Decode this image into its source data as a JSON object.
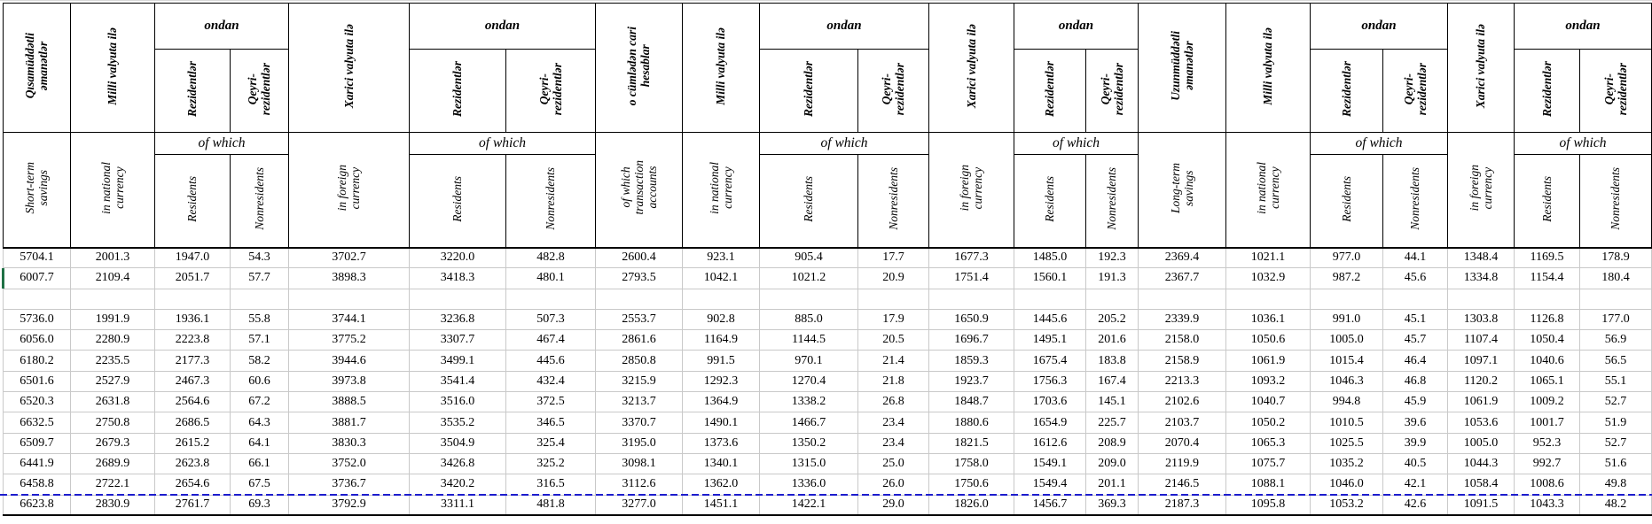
{
  "table": {
    "group_label_az": "ondan",
    "group_label_en": "of which",
    "columns": [
      {
        "az": "Qısamüddətli\nəmanətlər",
        "en": "Short-term\nsavings",
        "grouped": false
      },
      {
        "az": "Milli valyuta ilə",
        "en": "in national\ncurrency",
        "grouped": false
      },
      {
        "az": "Rezidentlər",
        "en": "Residents",
        "grouped": true
      },
      {
        "az": "Qeyri-\nrezidentlər",
        "en": "Nonresidents",
        "grouped": true
      },
      {
        "az": "Xarici valyuta ilə",
        "en": "in foreign\ncurrency",
        "grouped": false
      },
      {
        "az": "Rezidentlər",
        "en": "Residents",
        "grouped": true
      },
      {
        "az": "Qeyri-\nrezidentlər",
        "en": "Nonresidents",
        "grouped": true
      },
      {
        "az": "o cümlədən cari\nhesablar",
        "en": "of which\ntransaction\naccounts",
        "grouped": false
      },
      {
        "az": "Milli valyuta ilə",
        "en": "in national\ncurrency",
        "grouped": false
      },
      {
        "az": "Rezidentlər",
        "en": "Residents",
        "grouped": true
      },
      {
        "az": "Qeyri-\nrezidentlər",
        "en": "Nonresidents",
        "grouped": true
      },
      {
        "az": "Xarici valyuta ilə",
        "en": "in foreign\ncurrency",
        "grouped": false
      },
      {
        "az": "Rezidentlər",
        "en": "Residents",
        "grouped": true
      },
      {
        "az": "Qeyri-\nrezidentlər",
        "en": "Nonresidents",
        "grouped": true
      },
      {
        "az": "Uzunmüddətli\nəmanətlər",
        "en": "Long-term\nsavings",
        "grouped": false
      },
      {
        "az": "Milli valyuta ilə",
        "en": "in national\ncurrency",
        "grouped": false
      },
      {
        "az": "Rezidentlər",
        "en": "Residents",
        "grouped": true
      },
      {
        "az": "Qeyri-\nrezidentlər",
        "en": "Nonresidents",
        "grouped": true
      },
      {
        "az": "Xarici valyuta ilə",
        "en": "in foreign\ncurrency",
        "grouped": false
      },
      {
        "az": "Rezidentlər",
        "en": "Residents",
        "grouped": true
      },
      {
        "az": "Qeyri-\nrezidentlər",
        "en": "Nonresidents",
        "grouped": true
      }
    ],
    "rows": [
      [
        "5704.1",
        "2001.3",
        "1947.0",
        "54.3",
        "3702.7",
        "3220.0",
        "482.8",
        "2600.4",
        "923.1",
        "905.4",
        "17.7",
        "1677.3",
        "1485.0",
        "192.3",
        "2369.4",
        "1021.1",
        "977.0",
        "44.1",
        "1348.4",
        "1169.5",
        "178.9"
      ],
      [
        "6007.7",
        "2109.4",
        "2051.7",
        "57.7",
        "3898.3",
        "3418.3",
        "480.1",
        "2793.5",
        "1042.1",
        "1021.2",
        "20.9",
        "1751.4",
        "1560.1",
        "191.3",
        "2367.7",
        "1032.9",
        "987.2",
        "45.6",
        "1334.8",
        "1154.4",
        "180.4"
      ],
      null,
      [
        "5736.0",
        "1991.9",
        "1936.1",
        "55.8",
        "3744.1",
        "3236.8",
        "507.3",
        "2553.7",
        "902.8",
        "885.0",
        "17.9",
        "1650.9",
        "1445.6",
        "205.2",
        "2339.9",
        "1036.1",
        "991.0",
        "45.1",
        "1303.8",
        "1126.8",
        "177.0"
      ],
      [
        "6056.0",
        "2280.9",
        "2223.8",
        "57.1",
        "3775.2",
        "3307.7",
        "467.4",
        "2861.6",
        "1164.9",
        "1144.5",
        "20.5",
        "1696.7",
        "1495.1",
        "201.6",
        "2158.0",
        "1050.6",
        "1005.0",
        "45.7",
        "1107.4",
        "1050.4",
        "56.9"
      ],
      [
        "6180.2",
        "2235.5",
        "2177.3",
        "58.2",
        "3944.6",
        "3499.1",
        "445.6",
        "2850.8",
        "991.5",
        "970.1",
        "21.4",
        "1859.3",
        "1675.4",
        "183.8",
        "2158.9",
        "1061.9",
        "1015.4",
        "46.4",
        "1097.1",
        "1040.6",
        "56.5"
      ],
      [
        "6501.6",
        "2527.9",
        "2467.3",
        "60.6",
        "3973.8",
        "3541.4",
        "432.4",
        "3215.9",
        "1292.3",
        "1270.4",
        "21.8",
        "1923.7",
        "1756.3",
        "167.4",
        "2213.3",
        "1093.2",
        "1046.3",
        "46.8",
        "1120.2",
        "1065.1",
        "55.1"
      ],
      [
        "6520.3",
        "2631.8",
        "2564.6",
        "67.2",
        "3888.5",
        "3516.0",
        "372.5",
        "3213.7",
        "1364.9",
        "1338.2",
        "26.8",
        "1848.7",
        "1703.6",
        "145.1",
        "2102.6",
        "1040.7",
        "994.8",
        "45.9",
        "1061.9",
        "1009.2",
        "52.7"
      ],
      [
        "6632.5",
        "2750.8",
        "2686.5",
        "64.3",
        "3881.7",
        "3535.2",
        "346.5",
        "3370.7",
        "1490.1",
        "1466.7",
        "23.4",
        "1880.6",
        "1654.9",
        "225.7",
        "2103.7",
        "1050.2",
        "1010.5",
        "39.6",
        "1053.6",
        "1001.7",
        "51.9"
      ],
      [
        "6509.7",
        "2679.3",
        "2615.2",
        "64.1",
        "3830.3",
        "3504.9",
        "325.4",
        "3195.0",
        "1373.6",
        "1350.2",
        "23.4",
        "1821.5",
        "1612.6",
        "208.9",
        "2070.4",
        "1065.3",
        "1025.5",
        "39.9",
        "1005.0",
        "952.3",
        "52.7"
      ],
      [
        "6441.9",
        "2689.9",
        "2623.8",
        "66.1",
        "3752.0",
        "3426.8",
        "325.2",
        "3098.1",
        "1340.1",
        "1315.0",
        "25.0",
        "1758.0",
        "1549.1",
        "209.0",
        "2119.9",
        "1075.7",
        "1035.2",
        "40.5",
        "1044.3",
        "992.7",
        "51.6"
      ],
      [
        "6458.8",
        "2722.1",
        "2654.6",
        "67.5",
        "3736.7",
        "3420.2",
        "316.5",
        "3112.6",
        "1362.0",
        "1336.0",
        "26.0",
        "1750.6",
        "1549.4",
        "201.1",
        "2146.5",
        "1088.1",
        "1046.0",
        "42.1",
        "1058.4",
        "1008.6",
        "49.8"
      ],
      [
        "6623.8",
        "2830.9",
        "2761.7",
        "69.3",
        "3792.9",
        "3311.1",
        "481.8",
        "3277.0",
        "1451.1",
        "1422.1",
        "29.0",
        "1826.0",
        "1456.7",
        "369.3",
        "2187.3",
        "1095.8",
        "1053.2",
        "42.6",
        "1091.5",
        "1043.3",
        "48.2"
      ]
    ],
    "page_break_before_row": 12,
    "active_cell_row": 1
  },
  "colors": {
    "page_break_line": "#1c1ccd",
    "active_cell_marker": "#1f7145",
    "gridline": "#c9c9c9",
    "header_border": "#000000"
  }
}
